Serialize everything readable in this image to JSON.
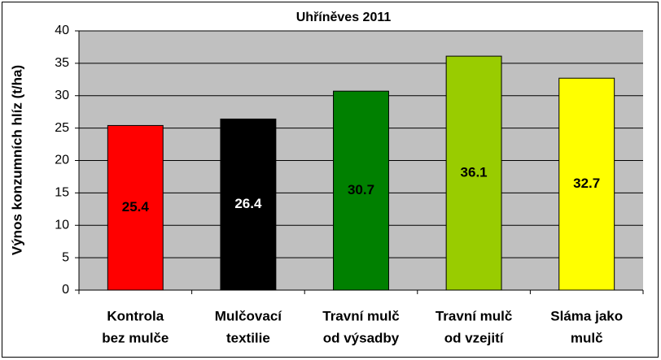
{
  "chart_data": {
    "type": "bar",
    "title": "Uhříněves 2011",
    "y_label": "Výnos konzumních hlíz (t/ha)",
    "categories": [
      [
        "Kontrola",
        "bez mulče"
      ],
      [
        "Mulčovací",
        "textilie"
      ],
      [
        "Travní mulč",
        "od výsadby"
      ],
      [
        "Travní mulč",
        "od vzejití"
      ],
      [
        "Sláma jako",
        "mulč"
      ]
    ],
    "values": [
      25.4,
      26.4,
      30.7,
      36.1,
      32.7
    ],
    "colors": [
      "#ff0000",
      "#000000",
      "#008000",
      "#99cc00",
      "#ffff00"
    ],
    "value_label_colors": [
      "#000000",
      "#ffffff",
      "#000000",
      "#000000",
      "#000000"
    ],
    "ylim": [
      0,
      40
    ],
    "yticks": [
      0,
      5,
      10,
      15,
      20,
      25,
      30,
      35,
      40
    ],
    "grid": true
  }
}
